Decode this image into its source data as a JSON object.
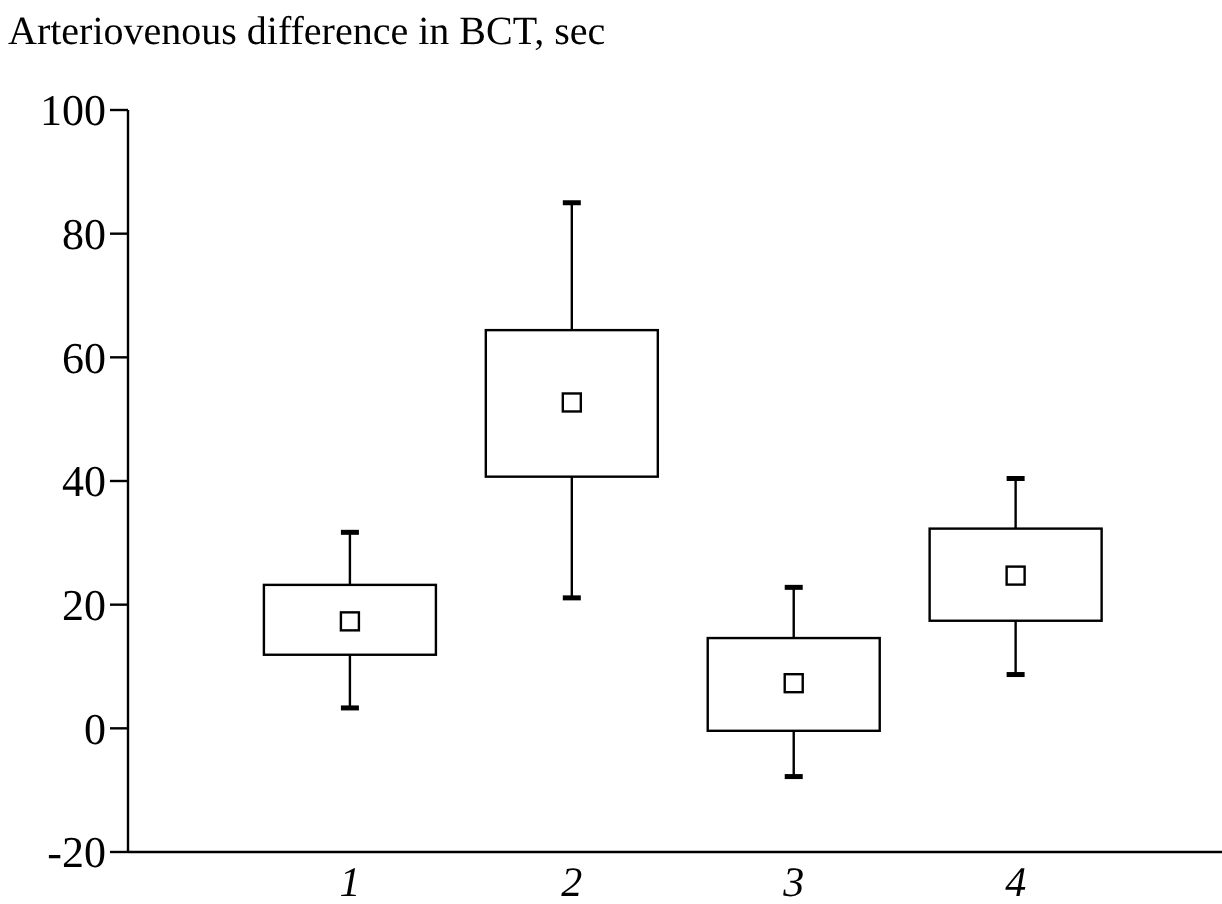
{
  "chart_data": {
    "type": "box",
    "ylabel": "Arteriovenous difference in BCT, sec",
    "categories": [
      "1",
      "2",
      "3",
      "4"
    ],
    "boxes": [
      {
        "low": 3.3,
        "q1": 11.9,
        "median": 17.3,
        "q3": 23.2,
        "high": 31.7
      },
      {
        "low": 21.1,
        "q1": 40.7,
        "median": 52.7,
        "q3": 64.4,
        "high": 85
      },
      {
        "low": -7.8,
        "q1": -0.4,
        "median": 7.3,
        "q3": 14.6,
        "high": 22.8
      },
      {
        "low": 8.7,
        "q1": 17.4,
        "median": 24.7,
        "q3": 32.3,
        "high": 40.4
      }
    ],
    "ylim": [
      -20,
      100
    ],
    "yticks": [
      -20,
      0,
      20,
      40,
      60,
      80,
      100
    ],
    "grid": false
  }
}
